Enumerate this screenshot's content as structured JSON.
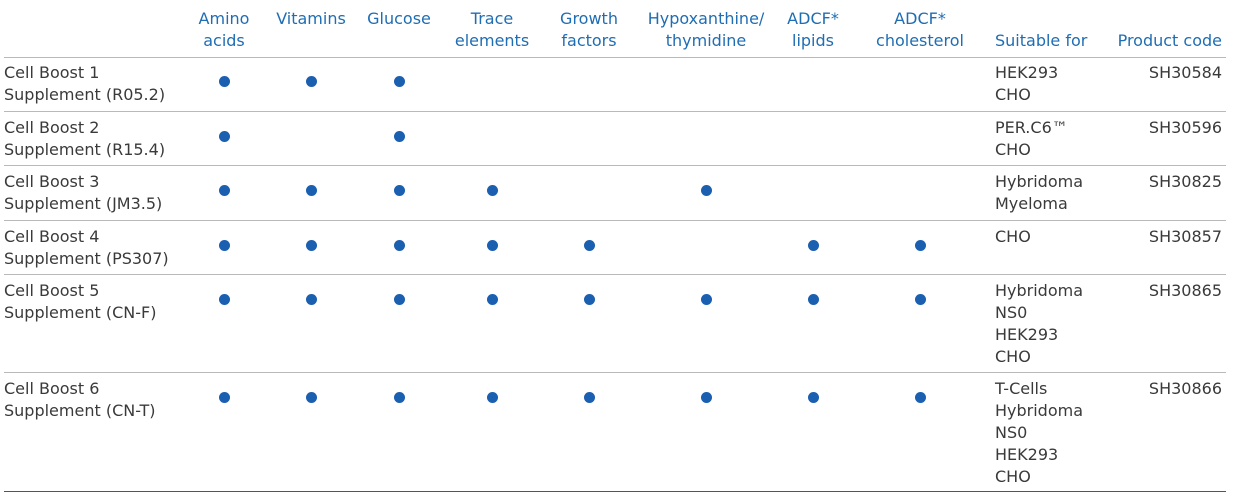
{
  "table": {
    "headers": [
      {
        "key": "amino",
        "label": "Amino\nacids"
      },
      {
        "key": "vitamins",
        "label": "Vitamins"
      },
      {
        "key": "glucose",
        "label": "Glucose"
      },
      {
        "key": "trace",
        "label": "Trace\nelements"
      },
      {
        "key": "growth",
        "label": "Growth\nfactors"
      },
      {
        "key": "hypo",
        "label": "Hypoxanthine/\nthymidine"
      },
      {
        "key": "lipids",
        "label": "ADCF*\nlipids"
      },
      {
        "key": "chol",
        "label": "ADCF*\ncholesterol"
      },
      {
        "key": "suitable",
        "label": "Suitable for"
      },
      {
        "key": "code",
        "label": "Product code"
      }
    ],
    "rows": [
      {
        "product": "Cell Boost 1\nSupplement (R05.2)",
        "features": [
          true,
          true,
          true,
          false,
          false,
          false,
          false,
          false
        ],
        "suitable_for": "HEK293\nCHO",
        "product_code": "SH30584"
      },
      {
        "product": "Cell Boost 2\nSupplement (R15.4)",
        "features": [
          true,
          false,
          true,
          false,
          false,
          false,
          false,
          false
        ],
        "suitable_for": "PER.C6™\nCHO",
        "product_code": "SH30596"
      },
      {
        "product": "Cell Boost 3\nSupplement (JM3.5)",
        "features": [
          true,
          true,
          true,
          true,
          false,
          true,
          false,
          false
        ],
        "suitable_for": "Hybridoma\nMyeloma",
        "product_code": "SH30825"
      },
      {
        "product": "Cell Boost 4\nSupplement (PS307)",
        "features": [
          true,
          true,
          true,
          true,
          true,
          false,
          true,
          true
        ],
        "suitable_for": "CHO",
        "product_code": "SH30857"
      },
      {
        "product": "Cell Boost 5\nSupplement (CN-F)",
        "features": [
          true,
          true,
          true,
          true,
          true,
          true,
          true,
          true
        ],
        "suitable_for": "Hybridoma\nNS0\nHEK293\nCHO",
        "product_code": "SH30865"
      },
      {
        "product": "Cell Boost 6\nSupplement (CN-T)",
        "features": [
          true,
          true,
          true,
          true,
          true,
          true,
          true,
          true
        ],
        "suitable_for": "T-Cells\nHybridoma\nNS0\nHEK293\nCHO",
        "product_code": "SH30866"
      }
    ]
  },
  "colors": {
    "header_text": "#1f6db3",
    "dot": "#1a5fb0",
    "body_text": "#3a3a3a",
    "row_rule": "#b9b9b9"
  }
}
